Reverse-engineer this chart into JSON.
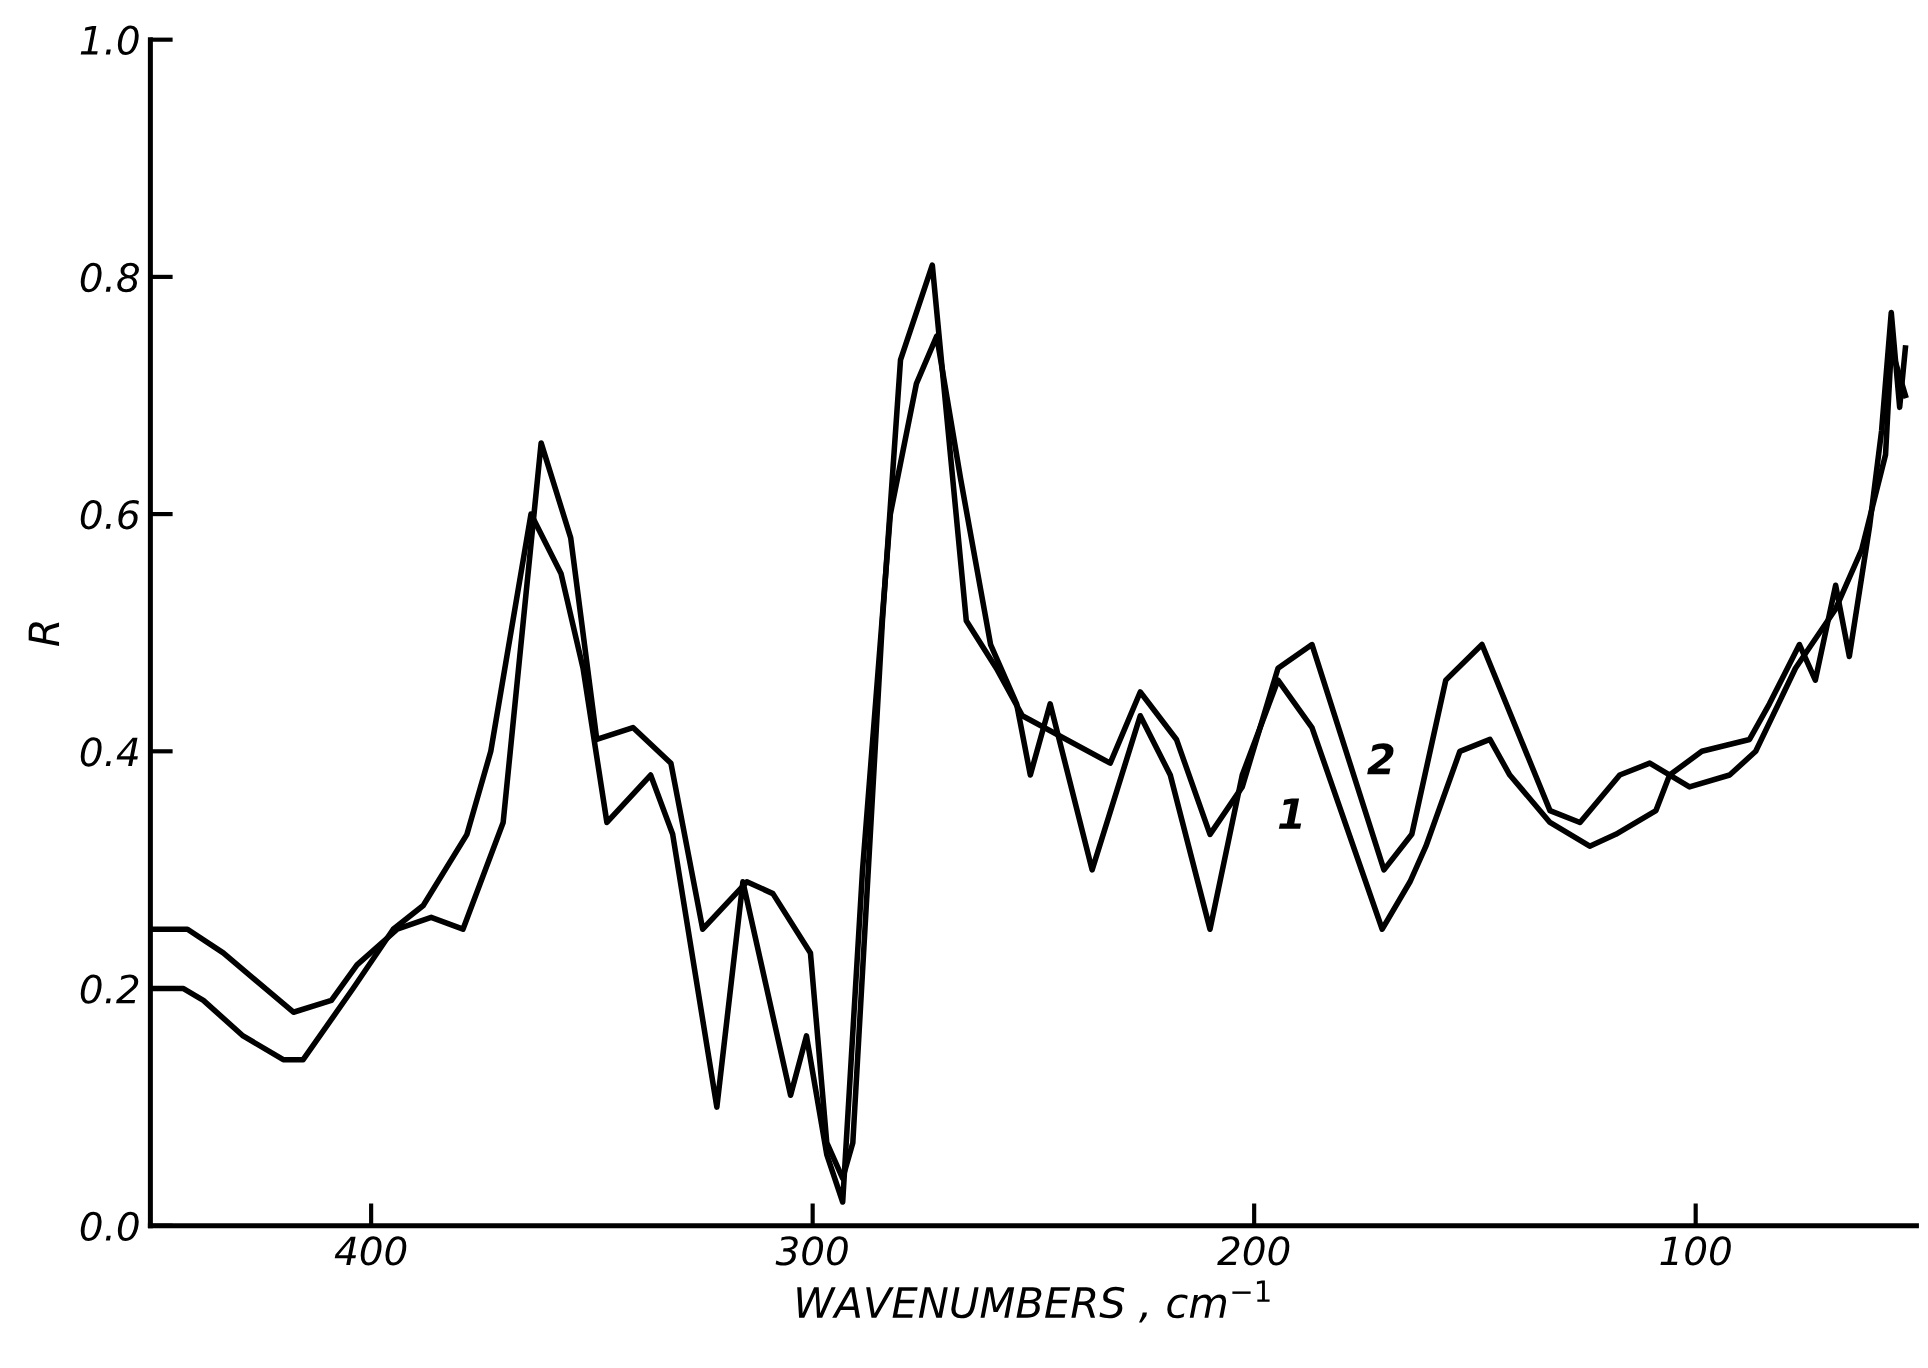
{
  "chart_data": {
    "type": "line",
    "xlabel": "WAVENUMBERS , cm$^{−1}$",
    "ylabel": "R",
    "xlim": [
      450,
      50
    ],
    "xticks": [
      400,
      300,
      200,
      100
    ],
    "ylim": [
      0,
      1.0
    ],
    "yticks": [
      {
        "value": 0,
        "label": "0.0"
      },
      {
        "value": 0.2,
        "label": "0.2"
      },
      {
        "value": 0.4,
        "label": "0.4"
      },
      {
        "value": 0.6,
        "label": "0.6"
      },
      {
        "value": 0.8,
        "label": "0.8"
      },
      {
        "value": 1.0,
        "label": "1.0"
      }
    ],
    "grid": false,
    "legend": false,
    "marker": "none",
    "line_style": "solid",
    "series": [
      {
        "name": "1",
        "color": "#000000",
        "x": [
          449.8,
          442.5,
          438.0,
          429.0,
          419.9,
          415.4,
          404.1,
          395.0,
          388.2,
          378.3,
          372.9,
          363.8,
          357.0,
          352.0,
          346.6,
          336.7,
          331.7,
          321.7,
          315.8,
          305.0,
          301.4,
          296.8,
          293.2,
          288.7,
          282.4,
          276.5,
          271.9,
          266.5,
          259.7,
          253.8,
          250.7,
          246.2,
          236.7,
          225.8,
          219.0,
          210.0,
          202.7,
          194.6,
          186.9,
          171.0,
          164.7,
          161.1,
          153.4,
          146.6,
          142.1,
          133.0,
          124.0,
          118.1,
          109.0,
          105.9,
          98.6,
          87.8,
          83.3,
          76.5,
          72.9,
          68.3,
          65.2,
          60.6,
          57.9,
          55.7,
          53.8,
          52.5
        ],
        "values": [
          0.2,
          0.2,
          0.19,
          0.16,
          0.14,
          0.14,
          0.2,
          0.25,
          0.27,
          0.33,
          0.4,
          0.6,
          0.55,
          0.47,
          0.34,
          0.38,
          0.33,
          0.1,
          0.29,
          0.11,
          0.16,
          0.06,
          0.02,
          0.3,
          0.6,
          0.71,
          0.75,
          0.63,
          0.49,
          0.44,
          0.38,
          0.44,
          0.3,
          0.43,
          0.38,
          0.25,
          0.38,
          0.46,
          0.42,
          0.25,
          0.29,
          0.32,
          0.4,
          0.41,
          0.38,
          0.34,
          0.32,
          0.33,
          0.35,
          0.38,
          0.4,
          0.41,
          0.44,
          0.49,
          0.46,
          0.54,
          0.48,
          0.59,
          0.67,
          0.77,
          0.69,
          0.74
        ]
      },
      {
        "name": "2",
        "color": "#000000",
        "x": [
          449.8,
          441.6,
          433.5,
          417.6,
          409.0,
          403.2,
          394.1,
          386.4,
          379.2,
          370.1,
          361.5,
          354.8,
          348.9,
          340.7,
          332.1,
          324.9,
          314.9,
          309.0,
          300.5,
          296.8,
          293.2,
          290.9,
          284.2,
          280.1,
          272.9,
          265.2,
          258.4,
          252.5,
          232.6,
          225.8,
          217.6,
          210.0,
          202.7,
          194.6,
          186.9,
          170.6,
          164.3,
          156.6,
          148.4,
          133.0,
          126.2,
          117.2,
          110.4,
          101.4,
          92.3,
          86.4,
          77.4,
          68.3,
          62.4,
          57.0,
          55.7,
          52.5
        ],
        "values": [
          0.25,
          0.25,
          0.23,
          0.18,
          0.19,
          0.22,
          0.25,
          0.26,
          0.25,
          0.34,
          0.66,
          0.58,
          0.41,
          0.42,
          0.39,
          0.25,
          0.29,
          0.28,
          0.23,
          0.07,
          0.04,
          0.07,
          0.51,
          0.73,
          0.81,
          0.51,
          0.47,
          0.43,
          0.39,
          0.45,
          0.41,
          0.33,
          0.37,
          0.47,
          0.49,
          0.3,
          0.33,
          0.46,
          0.49,
          0.35,
          0.34,
          0.38,
          0.39,
          0.37,
          0.38,
          0.4,
          0.47,
          0.52,
          0.57,
          0.65,
          0.74,
          0.7
        ]
      }
    ]
  }
}
